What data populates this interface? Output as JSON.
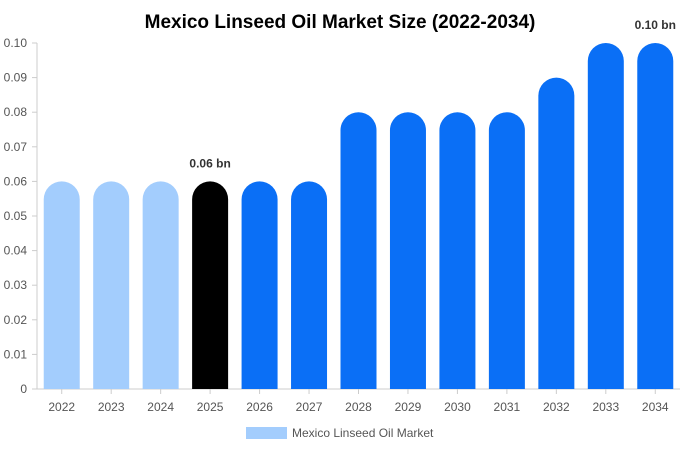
{
  "chart_data": {
    "type": "bar",
    "title": "Mexico Linseed Oil Market Size (2022-2034)",
    "categories": [
      "2022",
      "2023",
      "2024",
      "2025",
      "2026",
      "2027",
      "2028",
      "2029",
      "2030",
      "2031",
      "2032",
      "2033",
      "2034"
    ],
    "series": [
      {
        "name": "Mexico Linseed Oil Market",
        "values": [
          0.06,
          0.06,
          0.06,
          0.06,
          0.06,
          0.06,
          0.08,
          0.08,
          0.08,
          0.08,
          0.09,
          0.1,
          0.1
        ]
      }
    ],
    "y_ticks": [
      "0",
      "0.01",
      "0.02",
      "0.03",
      "0.04",
      "0.05",
      "0.06",
      "0.07",
      "0.08",
      "0.09",
      "0.10"
    ],
    "ylim": [
      0,
      0.1
    ],
    "grid": false,
    "legend_position": "bottom-center",
    "data_labels": [
      {
        "category": "2025",
        "text": "0.06 bn"
      },
      {
        "category": "2034",
        "text": "0.10 bn"
      }
    ],
    "bar_colors": [
      "#a3cdfd",
      "#a3cdfd",
      "#a3cdfd",
      "#000000",
      "#0a6ff6",
      "#0a6ff6",
      "#0a6ff6",
      "#0a6ff6",
      "#0a6ff6",
      "#0a6ff6",
      "#0a6ff6",
      "#0a6ff6",
      "#0a6ff6"
    ],
    "legend_color": "#a3cdfd",
    "axis_color": "#cccccc",
    "text_color": "#555555"
  }
}
